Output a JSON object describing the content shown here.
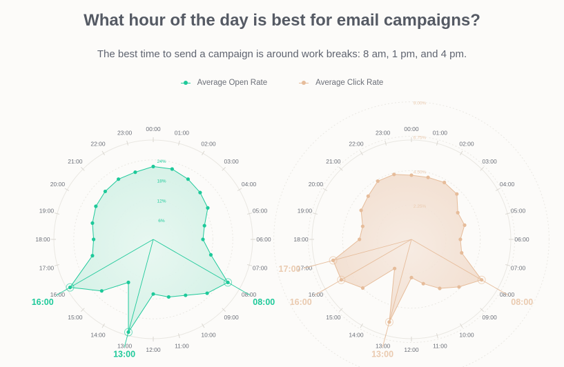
{
  "title": "What hour of the day is best for email campaigns?",
  "subtitle": "The best time to send a campaign is around work breaks: 8 am, 1 pm, and 4 pm.",
  "colors": {
    "open": "#1ec99a",
    "click": "#e6bc9a",
    "click_text": "#eacaaf",
    "grid": "#e9e7e2",
    "hour_label": "#6b6f78"
  },
  "legend": [
    {
      "label": "Average Open Rate",
      "color": "#1ec99a"
    },
    {
      "label": "Average Click Rate",
      "color": "#e6bc9a"
    }
  ],
  "chart_data": [
    {
      "type": "radar",
      "series_name": "Average Open Rate",
      "categories": [
        "00:00",
        "01:00",
        "02:00",
        "03:00",
        "04:00",
        "05:00",
        "06:00",
        "07:00",
        "08:00",
        "09:00",
        "10:00",
        "11:00",
        "12:00",
        "13:00",
        "14:00",
        "15:00",
        "16:00",
        "17:00",
        "18:00",
        "19:00",
        "20:00",
        "21:00",
        "22:00",
        "23:00"
      ],
      "values": [
        22,
        22,
        21,
        20,
        19,
        16,
        15,
        18,
        26,
        23,
        19.5,
        18,
        16.5,
        29,
        15,
        22,
        29,
        19,
        18,
        19,
        20,
        20.5,
        21,
        21
      ],
      "scale_max": 30,
      "rings": [
        6,
        12,
        18,
        24
      ],
      "ring_labels": [
        "6%",
        "12%",
        "18%",
        "24%"
      ],
      "highlights": [
        "08:00",
        "13:00",
        "16:00"
      ]
    },
    {
      "type": "radar",
      "series_name": "Average Click Rate",
      "categories": [
        "00:00",
        "01:00",
        "02:00",
        "03:00",
        "04:00",
        "05:00",
        "06:00",
        "07:00",
        "08:00",
        "09:00",
        "10:00",
        "11:00",
        "12:00",
        "13:00",
        "14:00",
        "15:00",
        "16:00",
        "17:00",
        "18:00",
        "19:00",
        "20:00",
        "21:00",
        "22:00",
        "23:00"
      ],
      "values": [
        4.2,
        4.2,
        4.3,
        4.2,
        3.5,
        3.6,
        3.2,
        3.4,
        5.3,
        4.4,
        3.7,
        3.0,
        2.5,
        5.6,
        2.2,
        4.5,
        5.3,
        5.3,
        3.4,
        3.3,
        3.8,
        4.0,
        4.4,
        4.4
      ],
      "scale_max": 6.5,
      "rings": [
        2.25,
        4.5,
        6.75,
        9
      ],
      "ring_labels": [
        "2.25%",
        "4.50%",
        "6.75%",
        "9.00%"
      ],
      "highlights": [
        "08:00",
        "13:00",
        "16:00",
        "17:00"
      ]
    }
  ]
}
